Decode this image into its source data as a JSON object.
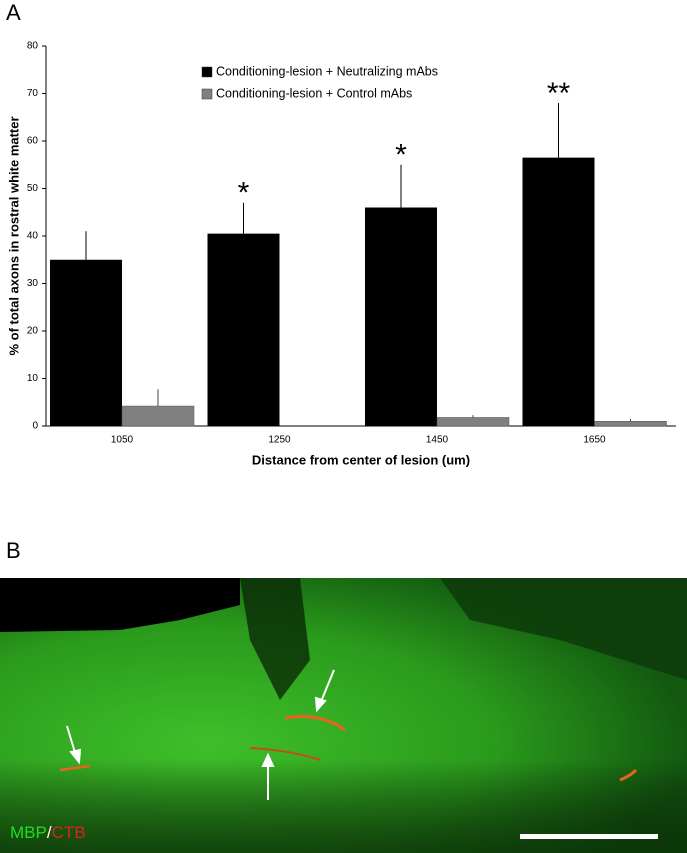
{
  "panel_labels": [
    "A",
    "B"
  ],
  "chart_data": {
    "type": "bar",
    "xlabel": "Distance from center of lesion (um)",
    "ylabel": "% of total axons in rostral white matter",
    "categories": [
      "1050",
      "1250",
      "1450",
      "1650"
    ],
    "series": [
      {
        "name": "Conditioning-lesion + Neutralizing mAbs",
        "color": "#000000",
        "values": [
          35,
          40.5,
          46,
          56.5
        ],
        "errors": [
          6,
          6.5,
          9,
          11.5
        ],
        "annotations": [
          null,
          "*",
          "*",
          "**"
        ]
      },
      {
        "name": "Conditioning-lesion + Control mAbs",
        "color": "#808080",
        "values": [
          4.2,
          0,
          1.8,
          1.0
        ],
        "errors": [
          3.5,
          0,
          0.5,
          0.5
        ]
      }
    ],
    "ylim": [
      0,
      80
    ],
    "yticks": [
      0,
      10,
      20,
      30,
      40,
      50,
      60,
      70,
      80
    ]
  },
  "image_label": {
    "stain1": "MBP",
    "separator": "/",
    "stain2": "CTB"
  }
}
